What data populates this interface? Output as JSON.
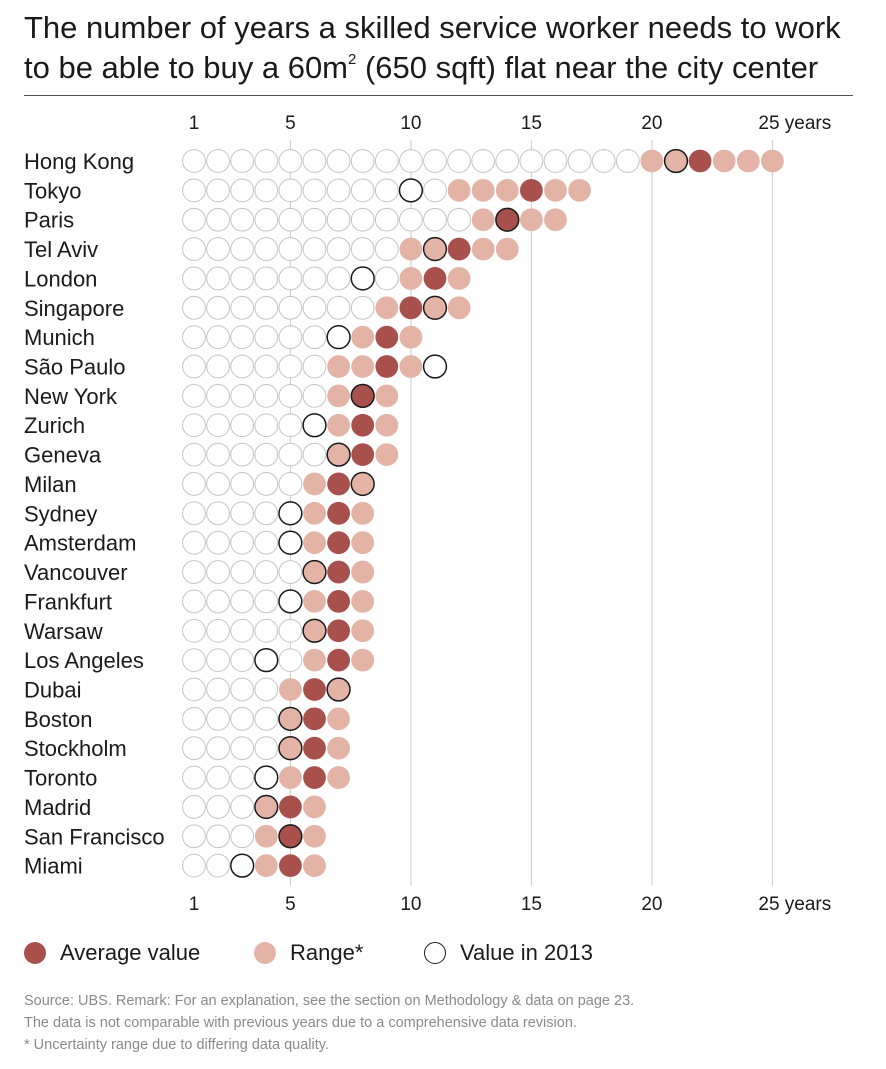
{
  "title": {
    "line1": "The number of years a skilled service worker needs to work",
    "line2_before_sup": "to be able to buy a 60m",
    "line2_sup": "2",
    "line2_after_sup": " (650 sqft) flat near the city center"
  },
  "colors": {
    "average": "#a8504c",
    "range": "#e3b4a6",
    "empty_stroke": "#c4c4c4",
    "value_2013_stroke": "#1a1a1a",
    "gridline": "#cccccc",
    "rule": "#555555"
  },
  "legend": {
    "average": "Average value",
    "range": "Range*",
    "value_2013": "Value in 2013"
  },
  "notes": [
    "Source: UBS. Remark: For an explanation, see the section on Methodology & data on page 23.",
    "The data is not comparable with previous years due to a comprehensive data revision.",
    "* Uncertainty range due to differing data quality."
  ],
  "chart_data": {
    "type": "scatter",
    "x_unit": "years",
    "xlim": [
      1,
      25
    ],
    "x_ticks": [
      {
        "value": 1,
        "label": "1"
      },
      {
        "value": 5,
        "label": "5"
      },
      {
        "value": 10,
        "label": "10"
      },
      {
        "value": 15,
        "label": "15"
      },
      {
        "value": 20,
        "label": "20"
      },
      {
        "value": 25,
        "label": "25 years"
      }
    ],
    "gridlines": [
      5,
      10,
      15,
      20,
      25
    ],
    "cities": [
      {
        "name": "Hong Kong",
        "average": 22,
        "range": [
          20,
          25
        ],
        "value_2013": 21
      },
      {
        "name": "Tokyo",
        "average": 15,
        "range": [
          12,
          17
        ],
        "value_2013": 10
      },
      {
        "name": "Paris",
        "average": 14,
        "range": [
          13,
          16
        ],
        "value_2013": 14
      },
      {
        "name": "Tel Aviv",
        "average": 12,
        "range": [
          10,
          14
        ],
        "value_2013": 11
      },
      {
        "name": "London",
        "average": 11,
        "range": [
          10,
          12
        ],
        "value_2013": 8
      },
      {
        "name": "Singapore",
        "average": 10,
        "range": [
          9,
          12
        ],
        "value_2013": 11
      },
      {
        "name": "Munich",
        "average": 9,
        "range": [
          8,
          10
        ],
        "value_2013": 7
      },
      {
        "name": "São Paulo",
        "average": 9,
        "range": [
          7,
          10
        ],
        "value_2013": 11
      },
      {
        "name": "New York",
        "average": 8,
        "range": [
          7,
          9
        ],
        "value_2013": 8
      },
      {
        "name": "Zurich",
        "average": 8,
        "range": [
          7,
          9
        ],
        "value_2013": 6
      },
      {
        "name": "Geneva",
        "average": 8,
        "range": [
          7,
          9
        ],
        "value_2013": 7
      },
      {
        "name": "Milan",
        "average": 7,
        "range": [
          6,
          8
        ],
        "value_2013": 8
      },
      {
        "name": "Sydney",
        "average": 7,
        "range": [
          6,
          8
        ],
        "value_2013": 5
      },
      {
        "name": "Amsterdam",
        "average": 7,
        "range": [
          6,
          8
        ],
        "value_2013": 5
      },
      {
        "name": "Vancouver",
        "average": 7,
        "range": [
          6,
          8
        ],
        "value_2013": 6
      },
      {
        "name": "Frankfurt",
        "average": 7,
        "range": [
          6,
          8
        ],
        "value_2013": 5
      },
      {
        "name": "Warsaw",
        "average": 7,
        "range": [
          6,
          8
        ],
        "value_2013": 6
      },
      {
        "name": "Los Angeles",
        "average": 7,
        "range": [
          6,
          8
        ],
        "value_2013": 4
      },
      {
        "name": "Dubai",
        "average": 6,
        "range": [
          5,
          7
        ],
        "value_2013": 7
      },
      {
        "name": "Boston",
        "average": 6,
        "range": [
          5,
          7
        ],
        "value_2013": 5
      },
      {
        "name": "Stockholm",
        "average": 6,
        "range": [
          5,
          7
        ],
        "value_2013": 5
      },
      {
        "name": "Toronto",
        "average": 6,
        "range": [
          5,
          7
        ],
        "value_2013": 4
      },
      {
        "name": "Madrid",
        "average": 5,
        "range": [
          4,
          6
        ],
        "value_2013": 4
      },
      {
        "name": "San Francisco",
        "average": 5,
        "range": [
          4,
          6
        ],
        "value_2013": 5
      },
      {
        "name": "Miami",
        "average": 5,
        "range": [
          4,
          6
        ],
        "value_2013": 3
      }
    ]
  }
}
